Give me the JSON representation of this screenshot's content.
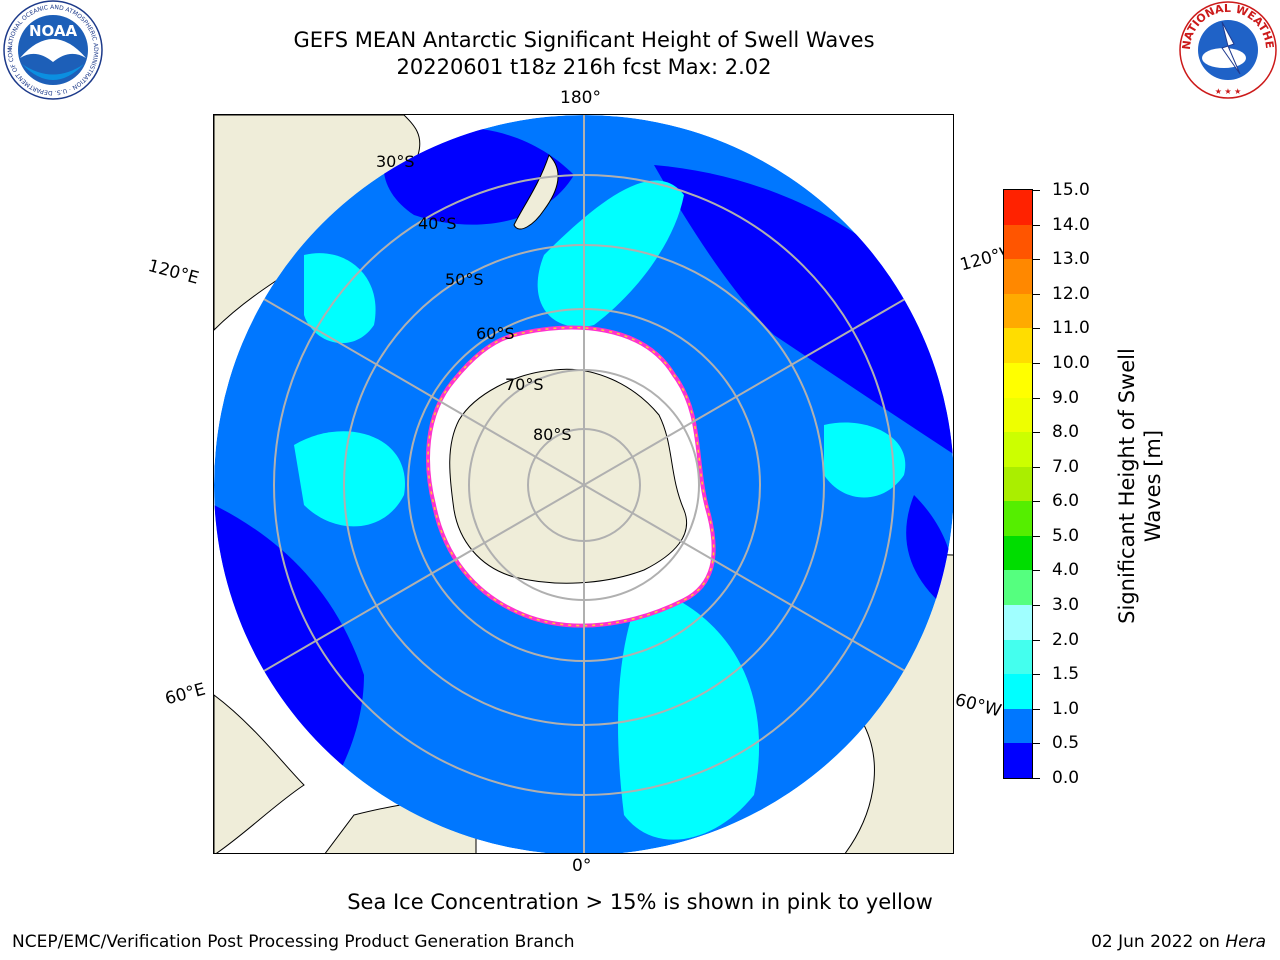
{
  "header": {
    "title_line1": "GEFS MEAN Antarctic Significant Height of Swell Waves",
    "title_line2": "20220601 t18z 216h fcst   Max: 2.02"
  },
  "logos": {
    "noaa": {
      "icon": "noaa-logo-icon",
      "text": "NOAA",
      "ring_text": "NATIONAL OCEANIC AND ATMOSPHERIC ADMINISTRATION · U.S. DEPARTMENT OF COMMERCE"
    },
    "nws": {
      "icon": "nws-logo-icon",
      "ring_text": "NATIONAL WEATHER SERVICE"
    }
  },
  "map": {
    "projection": "south-polar-stereographic",
    "longitude_labels": {
      "top": "180°",
      "bottom": "0°",
      "upper_left": "120°E",
      "lower_left": "60°E",
      "upper_right": "120°W",
      "lower_right": "60°W"
    },
    "latitude_labels": [
      "30°S",
      "40°S",
      "50°S",
      "60°S",
      "70°S",
      "80°S"
    ],
    "colors": {
      "land": "#efedd9",
      "grid": "#b0b0b0",
      "coast": "#000000",
      "ice_edge_pink": "#ff33cc",
      "ice_edge_yellow": "#ffcc33"
    }
  },
  "colorbar": {
    "label": "Significant Height of Swell Waves [m]",
    "label_line1": "Significant Height of Swell",
    "label_line2": "Waves [m]",
    "min": 0.0,
    "max": 15.0,
    "ticks": [
      "0.0",
      "0.5",
      "1.0",
      "1.5",
      "2.0",
      "3.0",
      "4.0",
      "5.0",
      "6.0",
      "7.0",
      "8.0",
      "9.0",
      "10.0",
      "11.0",
      "12.0",
      "13.0",
      "14.0",
      "15.0"
    ],
    "colors": [
      "#0000ff",
      "#0077ff",
      "#00ffff",
      "#44ffee",
      "#a0ffff",
      "#55ff7f",
      "#00dd00",
      "#55ee00",
      "#aaee00",
      "#ccff00",
      "#eeff00",
      "#ffff00",
      "#ffdd00",
      "#ffaa00",
      "#ff8800",
      "#ff5500",
      "#ff2200"
    ]
  },
  "footnote": "Sea Ice Concentration > 15% is shown in pink to yellow",
  "credits": {
    "left": "NCEP/EMC/Verification Post Processing Product Generation Branch",
    "right_date": "02 Jun 2022 on ",
    "right_host": "Hera"
  }
}
